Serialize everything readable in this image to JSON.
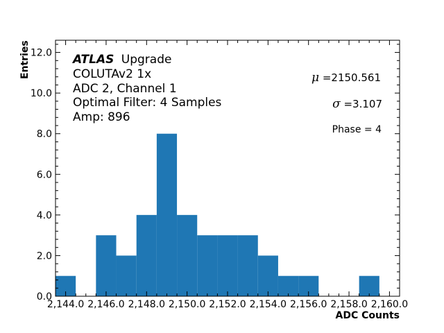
{
  "chart_data": {
    "type": "bar",
    "xlabel": "ADC Counts",
    "ylabel": "Entries",
    "xlim": [
      2143.5,
      2160.5
    ],
    "ylim": [
      0,
      12.6
    ],
    "bin_width": 1,
    "bins": [
      {
        "x": 2144,
        "value": 1
      },
      {
        "x": 2145,
        "value": 0
      },
      {
        "x": 2146,
        "value": 3
      },
      {
        "x": 2147,
        "value": 2
      },
      {
        "x": 2148,
        "value": 4
      },
      {
        "x": 2149,
        "value": 8
      },
      {
        "x": 2150,
        "value": 4
      },
      {
        "x": 2151,
        "value": 3
      },
      {
        "x": 2152,
        "value": 3
      },
      {
        "x": 2153,
        "value": 3
      },
      {
        "x": 2154,
        "value": 2
      },
      {
        "x": 2155,
        "value": 1
      },
      {
        "x": 2156,
        "value": 1
      },
      {
        "x": 2157,
        "value": 0
      },
      {
        "x": 2158,
        "value": 0
      },
      {
        "x": 2159,
        "value": 1
      }
    ],
    "xticks": [
      {
        "value": 2144,
        "label": "2,144.0"
      },
      {
        "value": 2146,
        "label": "2,146.0"
      },
      {
        "value": 2148,
        "label": "2,148.0"
      },
      {
        "value": 2150,
        "label": "2,150.0"
      },
      {
        "value": 2152,
        "label": "2,152.0"
      },
      {
        "value": 2154,
        "label": "2,154.0"
      },
      {
        "value": 2156,
        "label": "2,156.0"
      },
      {
        "value": 2158,
        "label": "2,158.0"
      },
      {
        "value": 2160,
        "label": "2,160.0"
      }
    ],
    "yticks": [
      {
        "value": 0,
        "label": "0.0"
      },
      {
        "value": 2,
        "label": "2.0"
      },
      {
        "value": 4,
        "label": "4.0"
      },
      {
        "value": 6,
        "label": "6.0"
      },
      {
        "value": 8,
        "label": "8.0"
      },
      {
        "value": 10,
        "label": "10.0"
      },
      {
        "value": 12,
        "label": "12.0"
      }
    ],
    "bar_color": "#1f77b4",
    "grid": false
  },
  "annotations": {
    "atlas": "ATLAS",
    "upgrade": "Upgrade",
    "device": "COLUTAv2 1x",
    "channel": "ADC 2, Channel 1",
    "filter": "Optimal Filter: 4 Samples",
    "amp": "Amp: 896",
    "mu_symbol": "μ",
    "mu_text": " =2150.561",
    "sigma_symbol": "σ",
    "sigma_text": " =3.107",
    "phase": "Phase = 4"
  }
}
